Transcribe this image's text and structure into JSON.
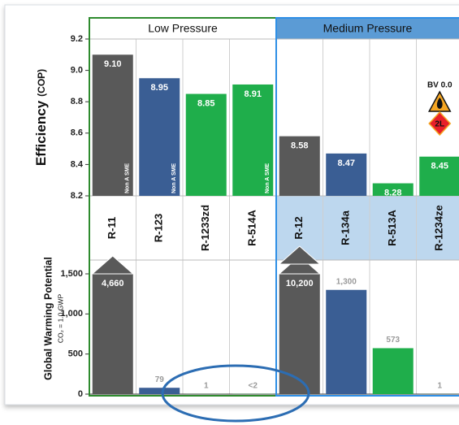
{
  "chart_data": [
    {
      "type": "bar",
      "ylabel": "Efficiency",
      "ylabel_unit": "(COP)",
      "groups": [
        "Low Pressure",
        "Medium Pressure"
      ],
      "categories": [
        "R-11",
        "R-123",
        "R-1233zd",
        "R-514A",
        "R-12",
        "R-134a",
        "R-513A",
        "R-1234ze"
      ],
      "colors": [
        "#595959",
        "#3a5e94",
        "#1fae4b",
        "#1fae4b",
        "#595959",
        "#3a5e94",
        "#1fae4b",
        "#1fae4b"
      ],
      "values": [
        9.1,
        8.95,
        8.85,
        8.91,
        8.58,
        8.47,
        8.28,
        8.45
      ],
      "value_labels": [
        "9.10",
        "8.95",
        "8.85",
        "8.91",
        "8.58",
        "8.47",
        "8.28",
        "8.45"
      ],
      "bar_notes": [
        "Non A SME",
        "Non A SME",
        null,
        "Non A SME",
        null,
        null,
        null,
        null
      ],
      "annotations": [
        "BV 0.0",
        "2L"
      ],
      "ylim": [
        8.2,
        9.2
      ],
      "yticks": [
        8.2,
        8.4,
        8.6,
        8.8,
        {
          "value": 9,
          "label": "9.0"
        },
        9.2
      ]
    },
    {
      "type": "bar",
      "ylabel": "Global Warming Potential",
      "ylabel_sub": "CO₂ = 1.0 GWP",
      "colors": [
        "#595959",
        "#3a5e94",
        "#1fae4b",
        "#1fae4b",
        "#595959",
        "#3a5e94",
        "#1fae4b",
        "#1fae4b"
      ],
      "values": [
        4660,
        79,
        1,
        2,
        10200,
        1300,
        573,
        1
      ],
      "value_labels": [
        "4,660",
        "79",
        "1",
        "<2",
        "10,200",
        "1,300",
        "573",
        "1"
      ],
      "ylim": [
        0,
        1500
      ],
      "yticks": [
        0,
        500,
        {
          "value": 1000,
          "label": "1,000"
        },
        {
          "value": 1500,
          "label": "1,500"
        }
      ]
    }
  ]
}
